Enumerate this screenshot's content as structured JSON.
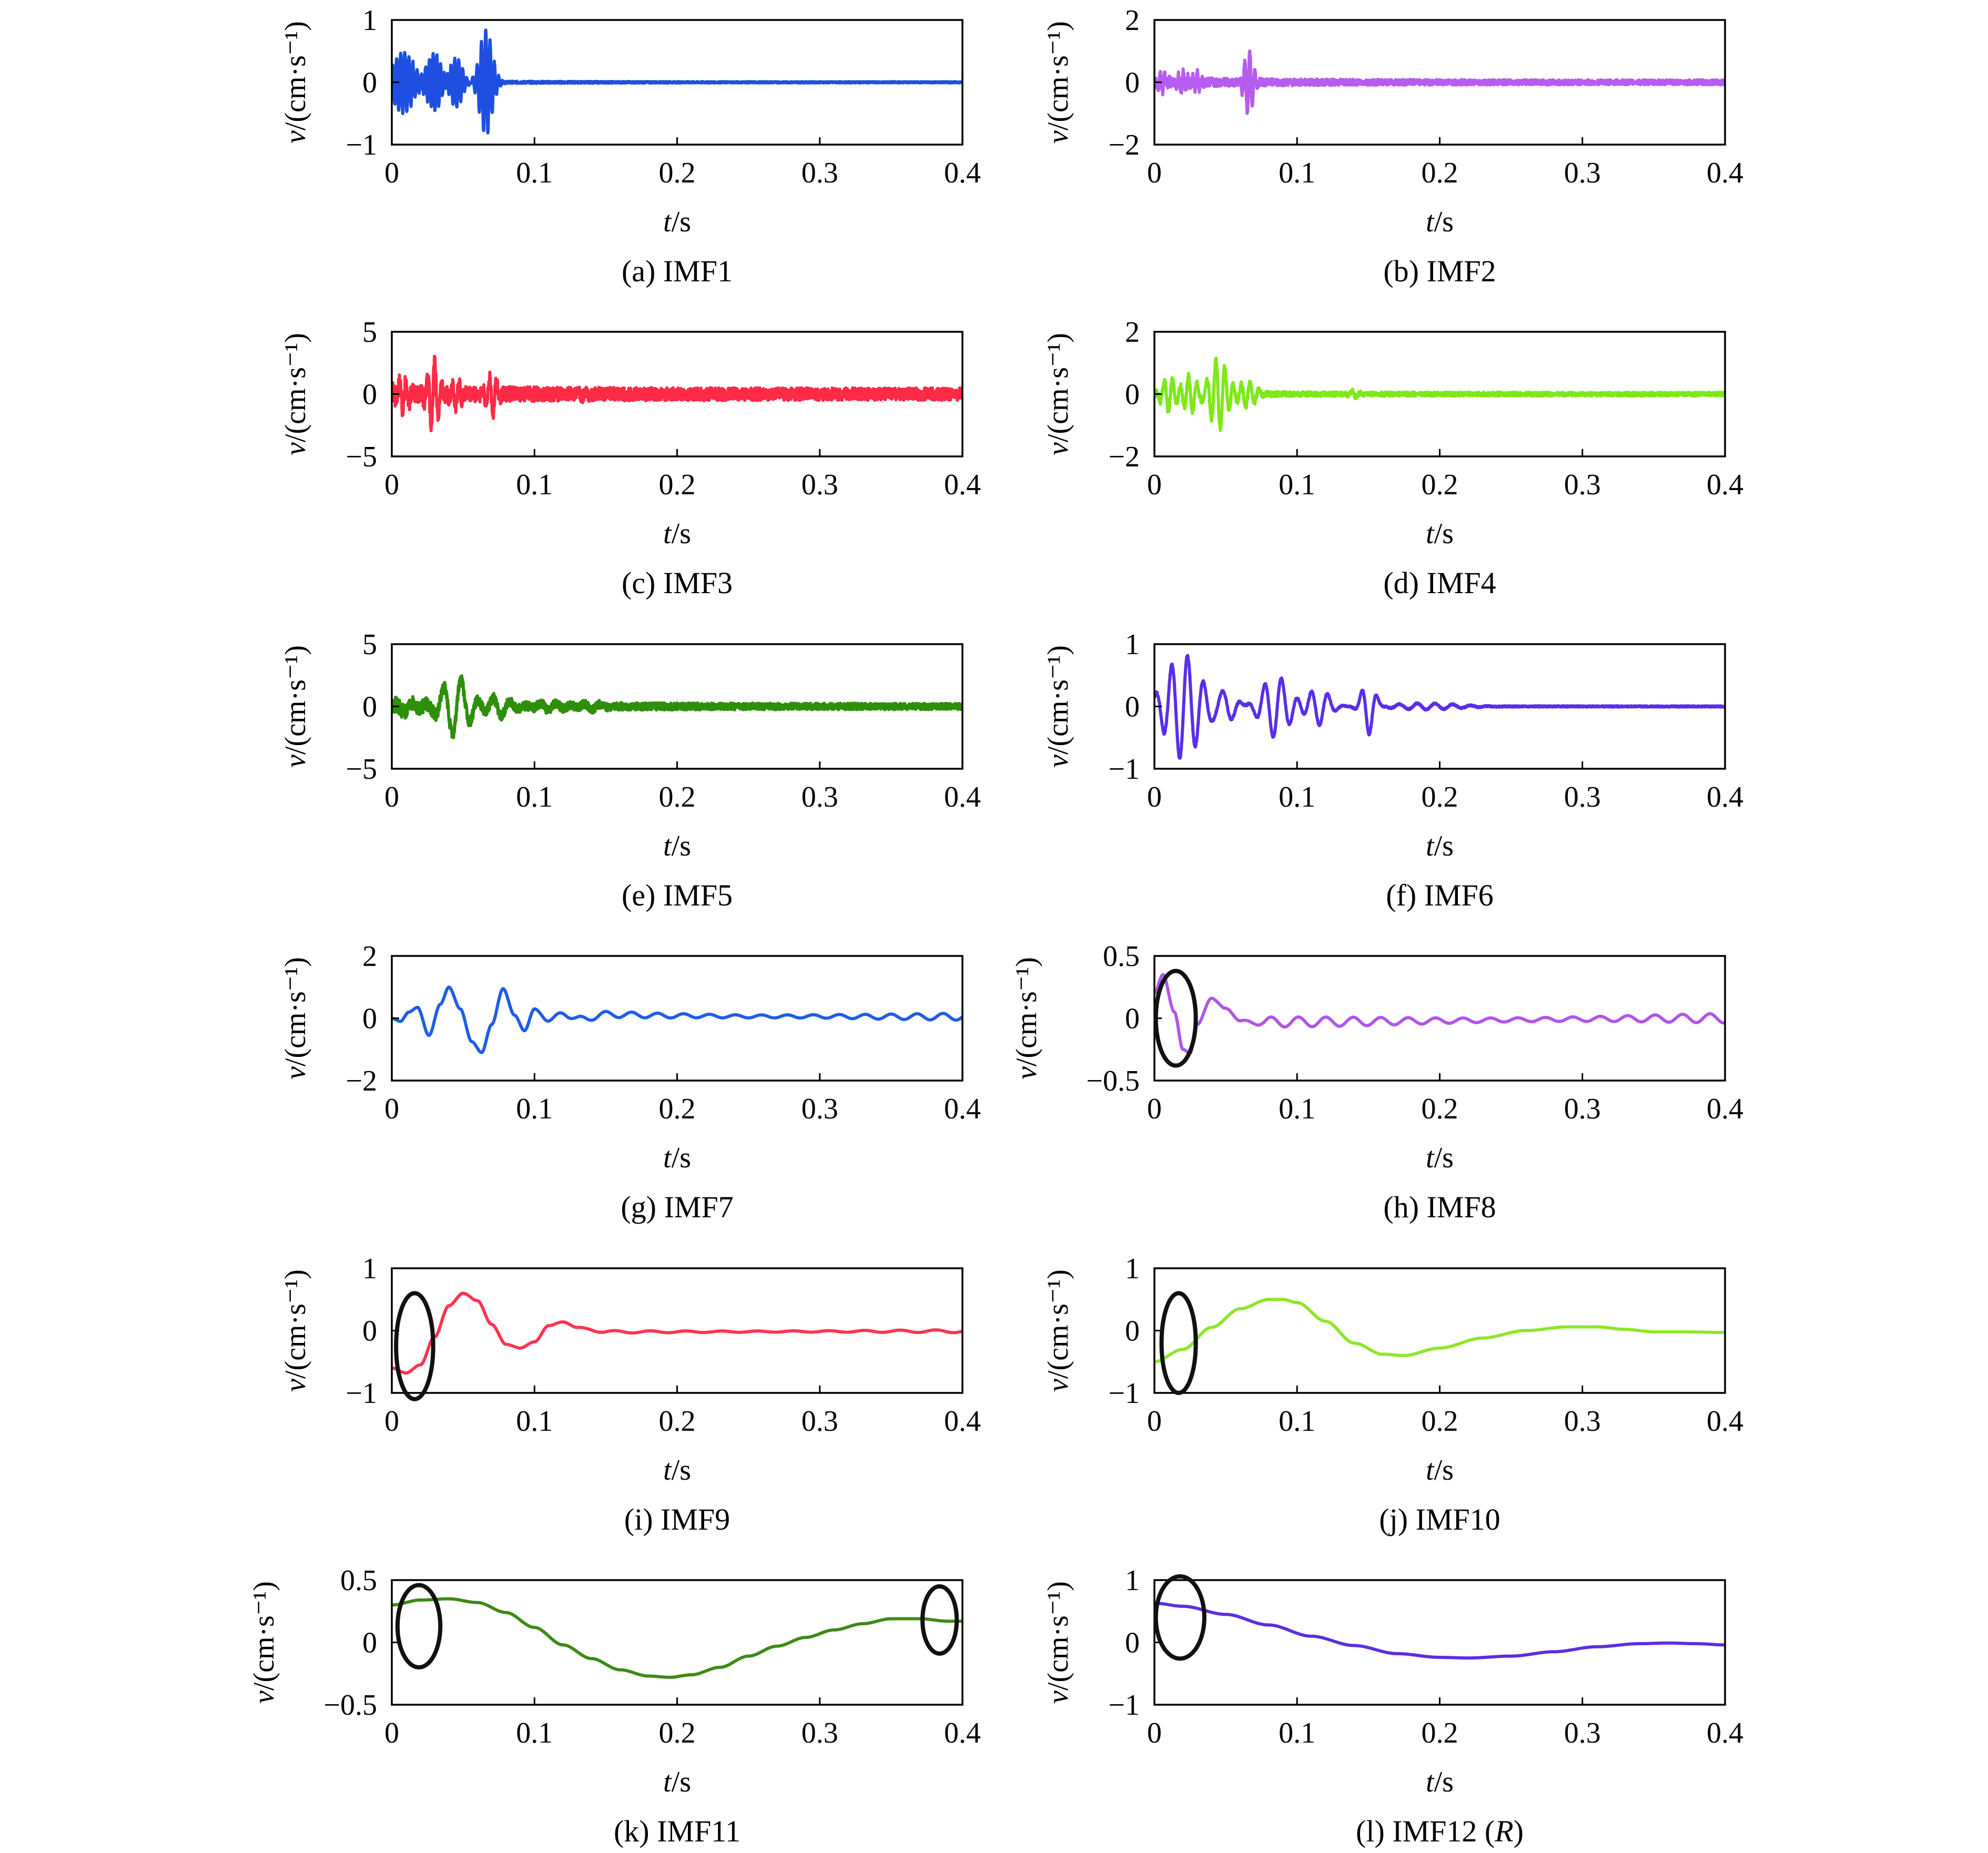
{
  "chart_data": [
    {
      "id": "a",
      "type": "line",
      "caption": "(a) IMF1",
      "color": "#1f4fe0",
      "ylabel": "v/(cm·s⁻¹)",
      "xlabel": "t/s",
      "xlim": [
        0,
        0.4
      ],
      "xticks": [
        "0",
        "0.1",
        "0.2",
        "0.3",
        "0.4"
      ],
      "ylim": [
        -1,
        1
      ],
      "yticks": [
        "1",
        "0",
        "−1"
      ],
      "series": [
        {
          "kind": "burst",
          "bursts": [
            [
              0.008,
              0.5,
              0.01,
              350
            ],
            [
              0.03,
              0.45,
              0.007,
              380
            ],
            [
              0.045,
              0.4,
              0.006,
              360
            ],
            [
              0.066,
              0.85,
              0.006,
              330
            ]
          ],
          "tail": 0.01,
          "noise": 0.025
        }
      ]
    },
    {
      "id": "b",
      "type": "line",
      "caption": "(b) IMF2",
      "color": "#b65cf0",
      "ylabel": "v/(cm·s⁻¹)",
      "xlabel": "t/s",
      "xlim": [
        0,
        0.4
      ],
      "xticks": [
        "0",
        "0.1",
        "0.2",
        "0.3",
        "0.4"
      ],
      "ylim": [
        -2,
        2
      ],
      "yticks": [
        "2",
        "0",
        "−2"
      ],
      "series": [
        {
          "kind": "burst",
          "bursts": [
            [
              0.006,
              0.25,
              0.004,
              300
            ],
            [
              0.02,
              0.35,
              0.004,
              300
            ],
            [
              0.03,
              0.3,
              0.004,
              300
            ],
            [
              0.066,
              1.1,
              0.004,
              280
            ]
          ],
          "tail": 0.04,
          "noise": 0.05
        }
      ]
    },
    {
      "id": "c",
      "type": "line",
      "caption": "(c) IMF3",
      "color": "#ff2a45",
      "ylabel": "v/(cm·s⁻¹)",
      "xlabel": "t/s",
      "xlim": [
        0,
        0.4
      ],
      "xticks": [
        "0",
        "0.1",
        "0.2",
        "0.3",
        "0.4"
      ],
      "ylim": [
        -5,
        5
      ],
      "yticks": [
        "5",
        "0",
        "−5"
      ],
      "series": [
        {
          "kind": "burst",
          "bursts": [
            [
              0.008,
              1.1,
              0.006,
              220
            ],
            [
              0.029,
              2.6,
              0.005,
              200
            ],
            [
              0.045,
              1.0,
              0.005,
              210
            ],
            [
              0.07,
              1.5,
              0.005,
              200
            ],
            [
              0.135,
              0.35,
              0.003,
              200
            ]
          ],
          "tail": 0.1,
          "noise": 0.06
        }
      ]
    },
    {
      "id": "d",
      "type": "line",
      "caption": "(d) IMF4",
      "color": "#7ee81a",
      "ylabel": "v/(cm·s⁻¹)",
      "xlabel": "t/s",
      "xlim": [
        0,
        0.4
      ],
      "xticks": [
        "0",
        "0.1",
        "0.2",
        "0.3",
        "0.4"
      ],
      "ylim": [
        -2,
        2
      ],
      "yticks": [
        "2",
        "0",
        "−2"
      ],
      "series": [
        {
          "kind": "burst",
          "bursts": [
            [
              0.01,
              0.55,
              0.006,
              170
            ],
            [
              0.025,
              0.6,
              0.006,
              170
            ],
            [
              0.045,
              1.15,
              0.008,
              160
            ],
            [
              0.065,
              0.4,
              0.008,
              160
            ],
            [
              0.14,
              0.12,
              0.004,
              160
            ]
          ],
          "tail": 0.03,
          "noise": 0.03
        }
      ]
    },
    {
      "id": "e",
      "type": "line",
      "caption": "(e) IMF5",
      "color": "#2e8f0a",
      "ylabel": "v/(cm·s⁻¹)",
      "xlabel": "t/s",
      "xlim": [
        0,
        0.4
      ],
      "xticks": [
        "0",
        "0.1",
        "0.2",
        "0.3",
        "0.4"
      ],
      "ylim": [
        -5,
        5
      ],
      "yticks": [
        "5",
        "0",
        "−5"
      ],
      "series": [
        {
          "kind": "burst",
          "bursts": [
            [
              0.01,
              0.45,
              0.008,
              80
            ],
            [
              0.045,
              2.3,
              0.013,
              80
            ],
            [
              0.075,
              0.8,
              0.01,
              80
            ],
            [
              0.11,
              0.35,
              0.012,
              90
            ],
            [
              0.14,
              0.25,
              0.01,
              90
            ]
          ],
          "tail": 0.05,
          "noise": 0.08
        }
      ]
    },
    {
      "id": "f",
      "type": "line",
      "caption": "(f) IMF6",
      "color": "#5a2ee8",
      "ylabel": "v/(cm·s⁻¹)",
      "xlabel": "t/s",
      "xlim": [
        0,
        0.4
      ],
      "xticks": [
        "0",
        "0.1",
        "0.2",
        "0.3",
        "0.4"
      ],
      "ylim": [
        -1,
        1
      ],
      "yticks": [
        "1",
        "0",
        "−1"
      ],
      "series": [
        {
          "kind": "burst",
          "bursts": [
            [
              0.02,
              0.85,
              0.016,
              90
            ],
            [
              0.05,
              0.25,
              0.01,
              80
            ],
            [
              0.085,
              0.5,
              0.013,
              85
            ],
            [
              0.115,
              0.3,
              0.01,
              85
            ],
            [
              0.15,
              0.45,
              0.006,
              90
            ],
            [
              0.19,
              0.05,
              0.03,
              80
            ]
          ],
          "tail": 0.01,
          "noise": 0.012
        }
      ]
    },
    {
      "id": "g",
      "type": "line",
      "caption": "(g) IMF7",
      "color": "#1f5ce8",
      "ylabel": "v/(cm·s⁻¹)",
      "xlabel": "t/s",
      "xlim": [
        0,
        0.4
      ],
      "xticks": [
        "0",
        "0.1",
        "0.2",
        "0.3",
        "0.4"
      ],
      "ylim": [
        -2,
        2
      ],
      "yticks": [
        "2",
        "0",
        "−2"
      ],
      "series": [
        {
          "kind": "points",
          "x": [
            0,
            0.006,
            0.012,
            0.018,
            0.026,
            0.034,
            0.04,
            0.048,
            0.056,
            0.063,
            0.07,
            0.078,
            0.086,
            0.093,
            0.1,
            0.11,
            0.12,
            0.13,
            0.15,
            0.2,
            0.25,
            0.3,
            0.35,
            0.4
          ],
          "y": [
            0,
            -0.1,
            0.2,
            0.35,
            -0.55,
            0.45,
            1.0,
            0.3,
            -0.75,
            -1.1,
            -0.2,
            0.95,
            0.1,
            -0.4,
            0.3,
            -0.1,
            0.2,
            -0.05,
            0.12,
            0.08,
            0.06,
            0.06,
            0.05,
            0.05
          ]
        }
      ],
      "ripple": {
        "from": 0.105,
        "amp": 0.12,
        "freq": 55
      }
    },
    {
      "id": "h",
      "type": "line",
      "caption": "(h) IMF8",
      "color": "#b055ea",
      "ylabel": "v/(cm·s⁻¹)",
      "xlabel": "t/s",
      "xlim": [
        0,
        0.4
      ],
      "xticks": [
        "0",
        "0.1",
        "0.2",
        "0.3",
        "0.4"
      ],
      "ylim": [
        -0.5,
        0.5
      ],
      "yticks": [
        "0.5",
        "0",
        "−0.5"
      ],
      "series": [
        {
          "kind": "points",
          "x": [
            0,
            0.006,
            0.014,
            0.02,
            0.025,
            0.03,
            0.04,
            0.05,
            0.06,
            0.07,
            0.4
          ],
          "y": [
            0.2,
            0.35,
            0.05,
            -0.25,
            -0.28,
            -0.05,
            0.16,
            0.08,
            -0.02,
            -0.03,
            0
          ]
        }
      ],
      "ripple": {
        "from": 0.06,
        "amp": 0.04,
        "freq": 52
      },
      "ellipses": [
        [
          0.015,
          0.0,
          0.014,
          0.38
        ]
      ]
    },
    {
      "id": "i",
      "type": "line",
      "caption": "(i) IMF9",
      "color": "#ff3350",
      "ylabel": "v/(cm·s⁻¹)",
      "xlabel": "t/s",
      "xlim": [
        0,
        0.4
      ],
      "xticks": [
        "0",
        "0.1",
        "0.2",
        "0.3",
        "0.4"
      ],
      "ylim": [
        -1,
        1
      ],
      "yticks": [
        "1",
        "0",
        "−1"
      ],
      "series": [
        {
          "kind": "points",
          "x": [
            0,
            0.01,
            0.02,
            0.03,
            0.04,
            0.05,
            0.06,
            0.07,
            0.08,
            0.09,
            0.1,
            0.11,
            0.12,
            0.13,
            0.15,
            0.4
          ],
          "y": [
            -0.6,
            -0.68,
            -0.55,
            -0.1,
            0.4,
            0.6,
            0.48,
            0.1,
            -0.22,
            -0.28,
            -0.18,
            0.08,
            0.14,
            0.05,
            -0.02,
            -0.01
          ]
        }
      ],
      "ripple": {
        "from": 0.13,
        "amp": 0.025,
        "freq": 40
      },
      "ellipses": [
        [
          0.016,
          -0.25,
          0.013,
          0.85
        ]
      ]
    },
    {
      "id": "j",
      "type": "line",
      "caption": "(j) IMF10",
      "color": "#8ee62a",
      "ylabel": "v/(cm·s⁻¹)",
      "xlabel": "t/s",
      "xlim": [
        0,
        0.4
      ],
      "xticks": [
        "0",
        "0.1",
        "0.2",
        "0.3",
        "0.4"
      ],
      "ylim": [
        -1,
        1
      ],
      "yticks": [
        "1",
        "0",
        "−1"
      ],
      "series": [
        {
          "kind": "points",
          "x": [
            0,
            0.02,
            0.04,
            0.06,
            0.08,
            0.09,
            0.1,
            0.12,
            0.14,
            0.16,
            0.175,
            0.2,
            0.23,
            0.26,
            0.29,
            0.31,
            0.33,
            0.35,
            0.37,
            0.4
          ],
          "y": [
            -0.5,
            -0.3,
            0.05,
            0.35,
            0.5,
            0.5,
            0.45,
            0.15,
            -0.2,
            -0.38,
            -0.4,
            -0.28,
            -0.12,
            0.0,
            0.06,
            0.06,
            0.02,
            -0.02,
            -0.02,
            -0.03
          ]
        }
      ],
      "ellipses": [
        [
          0.017,
          -0.2,
          0.012,
          0.8
        ]
      ]
    },
    {
      "id": "k",
      "type": "line",
      "caption": "(k) IMF11",
      "color": "#3d8a14",
      "ylabel": "v/(cm·s⁻¹)",
      "xlabel": "t/s",
      "xlim": [
        0,
        0.4
      ],
      "xticks": [
        "0",
        "0.1",
        "0.2",
        "0.3",
        "0.4"
      ],
      "ylim": [
        -0.5,
        0.5
      ],
      "yticks": [
        "0.5",
        "0",
        "−0.5"
      ],
      "series": [
        {
          "kind": "points",
          "x": [
            0,
            0.02,
            0.04,
            0.06,
            0.08,
            0.1,
            0.12,
            0.14,
            0.16,
            0.18,
            0.195,
            0.21,
            0.23,
            0.25,
            0.27,
            0.29,
            0.31,
            0.33,
            0.35,
            0.37,
            0.39,
            0.4
          ],
          "y": [
            0.3,
            0.34,
            0.35,
            0.32,
            0.24,
            0.12,
            -0.02,
            -0.13,
            -0.22,
            -0.27,
            -0.28,
            -0.26,
            -0.2,
            -0.11,
            -0.03,
            0.04,
            0.1,
            0.15,
            0.19,
            0.19,
            0.17,
            0.17
          ]
        }
      ],
      "ellipses": [
        [
          0.019,
          0.13,
          0.015,
          0.33
        ],
        [
          0.384,
          0.18,
          0.012,
          0.27
        ]
      ]
    },
    {
      "id": "l",
      "type": "line",
      "caption": "(l) IMF12 (R)",
      "color": "#5b2ee0",
      "ylabel": "v/(cm·s⁻¹)",
      "xlabel": "t/s",
      "xlim": [
        0,
        0.4
      ],
      "xticks": [
        "0",
        "0.1",
        "0.2",
        "0.3",
        "0.4"
      ],
      "ylim": [
        -1,
        1
      ],
      "yticks": [
        "1",
        "0",
        "−1"
      ],
      "series": [
        {
          "kind": "points",
          "x": [
            0,
            0.02,
            0.05,
            0.08,
            0.11,
            0.14,
            0.17,
            0.2,
            0.22,
            0.25,
            0.28,
            0.31,
            0.34,
            0.36,
            0.38,
            0.4
          ],
          "y": [
            0.63,
            0.58,
            0.45,
            0.28,
            0.1,
            -0.05,
            -0.18,
            -0.24,
            -0.25,
            -0.22,
            -0.15,
            -0.07,
            -0.02,
            -0.01,
            -0.02,
            -0.04
          ]
        }
      ],
      "ellipses": [
        [
          0.018,
          0.4,
          0.017,
          0.66
        ]
      ]
    }
  ]
}
